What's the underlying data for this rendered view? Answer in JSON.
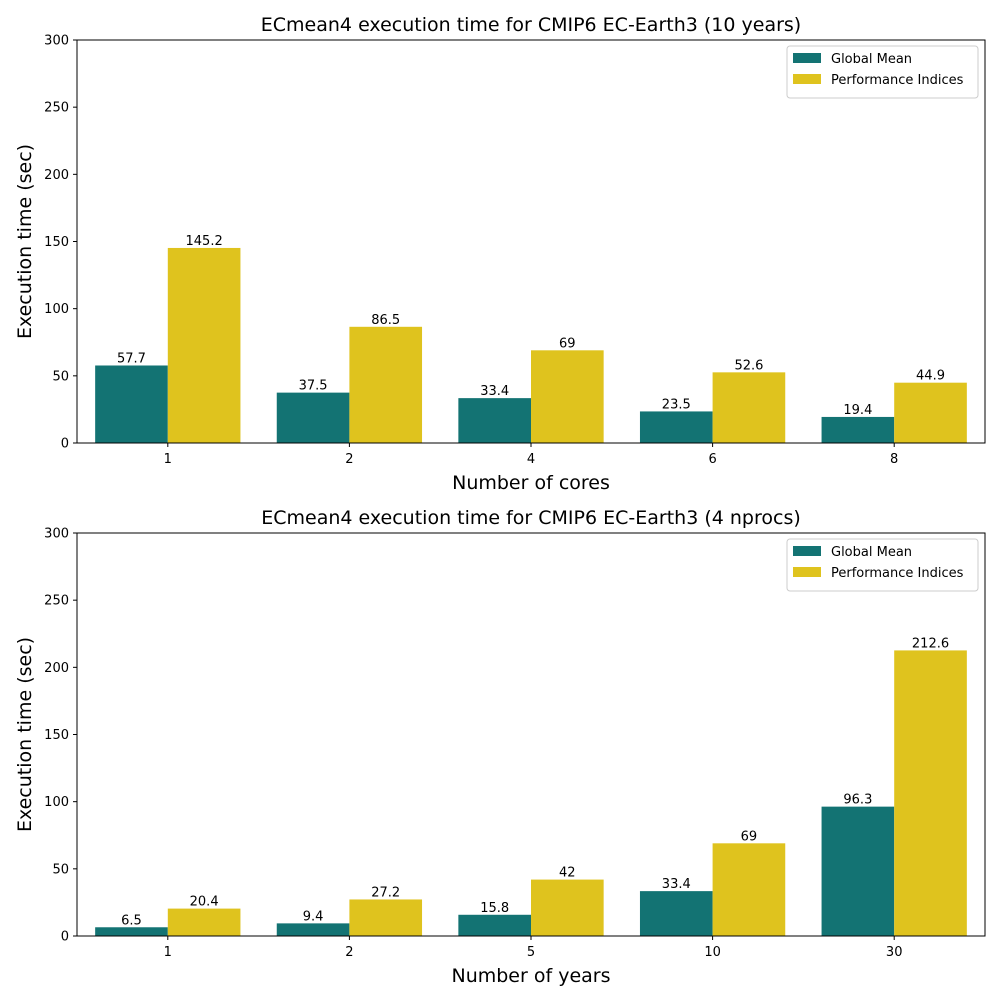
{
  "chart_data": [
    {
      "type": "bar",
      "title": "ECmean4 execution time for CMIP6 EC-Earth3 (10 years)",
      "xlabel": "Number of cores",
      "ylabel": "Execution time (sec)",
      "categories": [
        "1",
        "2",
        "4",
        "6",
        "8"
      ],
      "ylim": [
        0,
        300
      ],
      "yticks": [
        0,
        50,
        100,
        150,
        200,
        250,
        300
      ],
      "legend_position": "top-right",
      "grid": false,
      "series": [
        {
          "name": "Global Mean",
          "color": "#137373",
          "values": [
            57.7,
            37.5,
            33.4,
            23.5,
            19.4
          ],
          "labels": [
            "57.7",
            "37.5",
            "33.4",
            "23.5",
            "19.4"
          ]
        },
        {
          "name": "Performance Indices",
          "color": "#dfc31e",
          "values": [
            145.2,
            86.5,
            69,
            52.6,
            44.9
          ],
          "labels": [
            "145.2",
            "86.5",
            "69",
            "52.6",
            "44.9"
          ]
        }
      ]
    },
    {
      "type": "bar",
      "title": "ECmean4 execution time for CMIP6 EC-Earth3 (4 nprocs)",
      "xlabel": "Number of years",
      "ylabel": "Execution time (sec)",
      "categories": [
        "1",
        "2",
        "5",
        "10",
        "30"
      ],
      "ylim": [
        0,
        300
      ],
      "yticks": [
        0,
        50,
        100,
        150,
        200,
        250,
        300
      ],
      "legend_position": "top-right",
      "grid": false,
      "series": [
        {
          "name": "Global Mean",
          "color": "#137373",
          "values": [
            6.5,
            9.4,
            15.8,
            33.4,
            96.3
          ],
          "labels": [
            "6.5",
            "9.4",
            "15.8",
            "33.4",
            "96.3"
          ]
        },
        {
          "name": "Performance Indices",
          "color": "#dfc31e",
          "values": [
            20.4,
            27.2,
            42,
            69,
            212.6
          ],
          "labels": [
            "20.4",
            "27.2",
            "42",
            "69",
            "212.6"
          ]
        }
      ]
    }
  ]
}
